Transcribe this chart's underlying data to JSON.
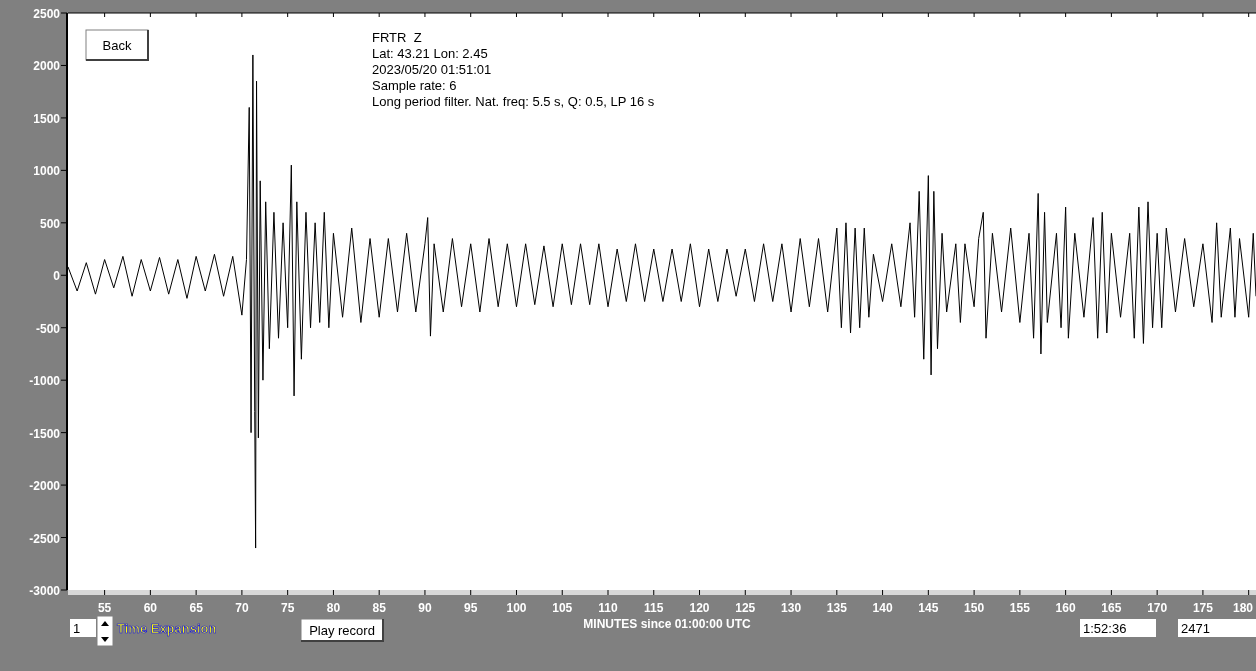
{
  "chart_data": {
    "type": "line",
    "title": "FRTR  Z",
    "subtitle": "Lat: 43.21 Lon: 2.45",
    "annotations": [
      "2023/05/20 01:51:01",
      "Sample rate: 6",
      "Long period filter. Nat. freq: 5.5 s, Q: 0.5, LP 16 s",
      "Back",
      "1",
      "Time Expansion",
      "Play record",
      "1:52:36",
      "2471"
    ],
    "xlabel": "MINUTES since 01:00:00 UTC",
    "xlim": [
      51,
      180.8
    ],
    "xticks": [
      55,
      60,
      65,
      70,
      75,
      80,
      85,
      90,
      95,
      100,
      105,
      110,
      115,
      120,
      125,
      130,
      135,
      140,
      145,
      150,
      155,
      160,
      165,
      170,
      175,
      180
    ],
    "ylim": [
      -3000,
      2500
    ],
    "yticks": [
      2500,
      2000,
      1500,
      1000,
      500,
      0,
      -500,
      -1000,
      -1500,
      -2000,
      -2500,
      -3000
    ],
    "grid": false,
    "series": [
      {
        "color": "#000000",
        "x": [
          51,
          52,
          53,
          54,
          55,
          56,
          57,
          58,
          59,
          60,
          61,
          62,
          63,
          64,
          65,
          66,
          67,
          68,
          69,
          70,
          70.5,
          70.8,
          71,
          71.2,
          71.4,
          71.5,
          71.6,
          71.8,
          72,
          72.3,
          72.6,
          73,
          73.5,
          74,
          74.5,
          75,
          75.4,
          75.7,
          76,
          76.5,
          77,
          77.5,
          78,
          78.5,
          79,
          79.5,
          80,
          81,
          82,
          83,
          84,
          85,
          86,
          87,
          88,
          89,
          90,
          90.3,
          90.6,
          91,
          92,
          93,
          94,
          95,
          96,
          97,
          98,
          99,
          100,
          101,
          102,
          103,
          104,
          105,
          106,
          107,
          108,
          109,
          110,
          111,
          112,
          113,
          114,
          115,
          116,
          117,
          118,
          119,
          120,
          121,
          122,
          123,
          124,
          125,
          126,
          127,
          128,
          129,
          130,
          131,
          132,
          133,
          134,
          135,
          135.5,
          136,
          136.5,
          137,
          137.5,
          138,
          138.5,
          139,
          140,
          141,
          142,
          143,
          143.5,
          144,
          144.5,
          145,
          145.3,
          145.6,
          146,
          146.5,
          147,
          148,
          148.5,
          149,
          150,
          150.5,
          151,
          151.3,
          152,
          153,
          154,
          155,
          156,
          156.5,
          157,
          157.3,
          157.7,
          158,
          159,
          159.5,
          160,
          160.3,
          161,
          162,
          163,
          163.5,
          164,
          164.5,
          165,
          166,
          167,
          167.5,
          168,
          168.5,
          169,
          169.5,
          170,
          170.5,
          171,
          172,
          173,
          174,
          175,
          176,
          176.5,
          177,
          178,
          178.5,
          179,
          180,
          180.5,
          180.8
        ],
        "values": [
          80,
          -150,
          120,
          -180,
          150,
          -120,
          180,
          -200,
          150,
          -150,
          170,
          -180,
          150,
          -220,
          180,
          -150,
          200,
          -200,
          180,
          -380,
          150,
          1600,
          -1500,
          2100,
          -1300,
          -2600,
          1850,
          -1550,
          900,
          -1000,
          700,
          -700,
          600,
          -600,
          500,
          -500,
          1050,
          -1150,
          700,
          -800,
          600,
          -500,
          500,
          -450,
          600,
          -500,
          400,
          -400,
          450,
          -450,
          350,
          -400,
          350,
          -350,
          400,
          -350,
          300,
          550,
          -580,
          300,
          -350,
          350,
          -300,
          300,
          -350,
          350,
          -300,
          300,
          -300,
          300,
          -280,
          280,
          -300,
          300,
          -280,
          300,
          -280,
          300,
          -300,
          250,
          -250,
          300,
          -250,
          250,
          -250,
          250,
          -250,
          300,
          -300,
          250,
          -250,
          250,
          -200,
          250,
          -250,
          300,
          -250,
          300,
          -350,
          350,
          -300,
          350,
          -350,
          450,
          -500,
          500,
          -550,
          450,
          -500,
          450,
          -400,
          200,
          -250,
          300,
          -300,
          500,
          -400,
          800,
          -800,
          950,
          -950,
          800,
          -700,
          400,
          -350,
          300,
          -450,
          300,
          -300,
          350,
          600,
          -600,
          400,
          -350,
          450,
          -450,
          400,
          -600,
          780,
          -750,
          600,
          -450,
          400,
          -500,
          650,
          -600,
          400,
          -400,
          550,
          -600,
          600,
          -550,
          400,
          -400,
          400,
          -600,
          650,
          -650,
          700,
          -500,
          400,
          -500,
          450,
          -350,
          350,
          -300,
          300,
          -450,
          500,
          -400,
          450,
          -400,
          350,
          -400,
          400,
          -200
        ]
      }
    ]
  }
}
